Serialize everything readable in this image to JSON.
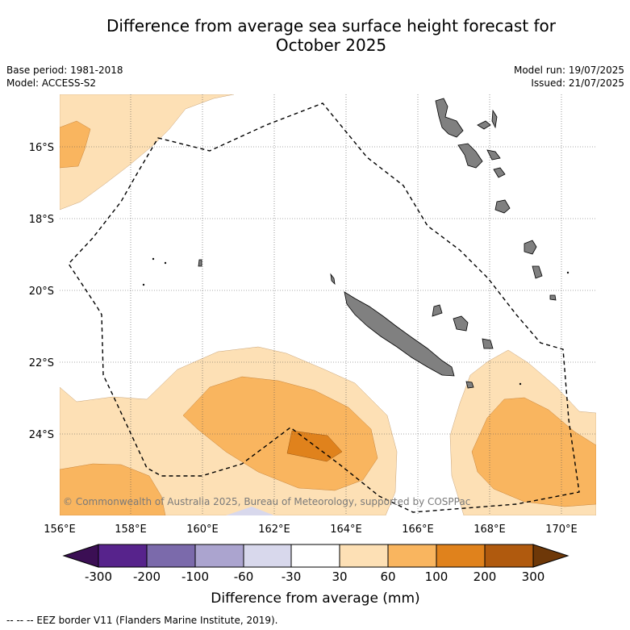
{
  "title": {
    "line1": "Difference from average sea surface height forecast for",
    "line2": "October 2025"
  },
  "meta": {
    "base_period": "Base period: 1981-2018",
    "model": "Model: ACCESS-S2",
    "model_run": "Model run: 19/07/2025",
    "issued": "Issued: 21/07/2025"
  },
  "map": {
    "x_ticks": [
      "156°E",
      "158°E",
      "160°E",
      "162°E",
      "164°E",
      "166°E",
      "168°E",
      "170°E"
    ],
    "y_ticks": [
      "16°S",
      "18°S",
      "20°S",
      "22°S",
      "24°S"
    ],
    "copyright": "© Commonwealth of Australia 2025, Bureau of Meteorology, supported by COSPPac",
    "land_color": "#808080",
    "eez_style": "dashed black line"
  },
  "colorbar": {
    "labels": [
      "-300",
      "-200",
      "-100",
      "-60",
      "-30",
      "30",
      "60",
      "100",
      "200",
      "300"
    ],
    "colors": [
      "#3b0f54",
      "#57238c",
      "#7b6aab",
      "#aba4cf",
      "#d8d8ec",
      "#ffffff",
      "#fde0b5",
      "#f9b55f",
      "#e0821c",
      "#b05a0e",
      "#6e3808"
    ],
    "xlabel": "Difference from average (mm)"
  },
  "footnote": "-- -- -- EEZ border V11 (Flanders Marine Institute, 2019)."
}
